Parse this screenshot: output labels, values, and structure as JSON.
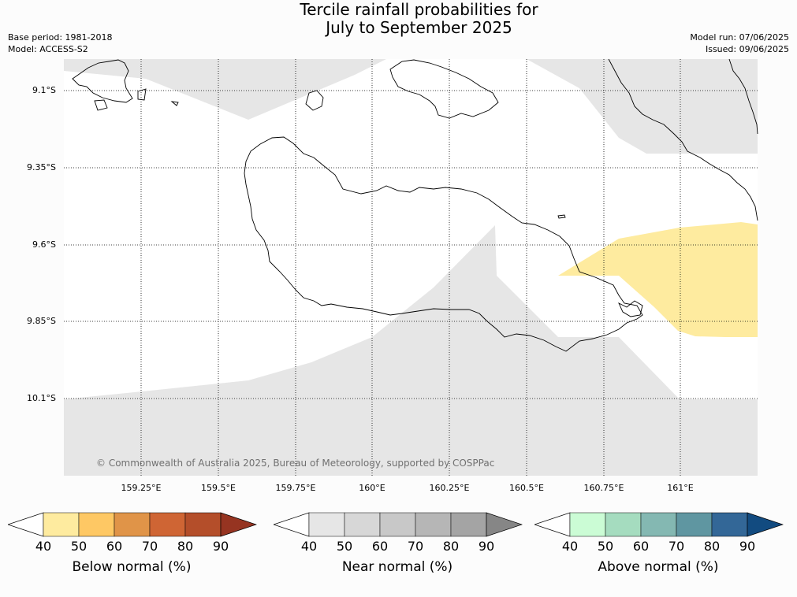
{
  "title": {
    "line1": "Tercile rainfall probabilities for",
    "line2": "July to September 2025"
  },
  "meta": {
    "base_period": "Base period: 1981-2018",
    "model": "Model: ACCESS-S2",
    "model_run": "Model run: 07/06/2025",
    "issued": "Issued: 09/06/2025"
  },
  "map": {
    "lat_labels": [
      "9.1°S",
      "9.35°S",
      "9.6°S",
      "9.85°S",
      "10.1°S"
    ],
    "lon_labels": [
      "159.25°E",
      "159.5°E",
      "159.75°E",
      "160°E",
      "160.25°E",
      "160.5°E",
      "160.75°E",
      "161°E"
    ],
    "copyright": "© Commonwealth of Australia 2025, Bureau of Meteorology, supported by COSPPac",
    "colors": {
      "near_normal_40_50": "#e6e6e6",
      "below_normal_40_50": "#feeb9f",
      "land_outline": "#000000"
    }
  },
  "colorbars": [
    {
      "label": "Below normal (%)",
      "ticks": [
        "40",
        "50",
        "60",
        "70",
        "80",
        "90"
      ],
      "colors": [
        "#ffffff",
        "#feeb9f",
        "#fec864",
        "#e09448",
        "#cf6534",
        "#b44e2a",
        "#963421"
      ]
    },
    {
      "label": "Near normal (%)",
      "ticks": [
        "40",
        "50",
        "60",
        "70",
        "80",
        "90"
      ],
      "colors": [
        "#ffffff",
        "#e6e6e6",
        "#d7d7d7",
        "#c8c8c8",
        "#b6b6b6",
        "#a4a4a4",
        "#868686"
      ]
    },
    {
      "label": "Above normal (%)",
      "ticks": [
        "40",
        "50",
        "60",
        "70",
        "80",
        "90"
      ],
      "colors": [
        "#ffffff",
        "#cbfcd5",
        "#a5dcbf",
        "#84b8b2",
        "#5f96a1",
        "#336797",
        "#124b80"
      ]
    }
  ]
}
